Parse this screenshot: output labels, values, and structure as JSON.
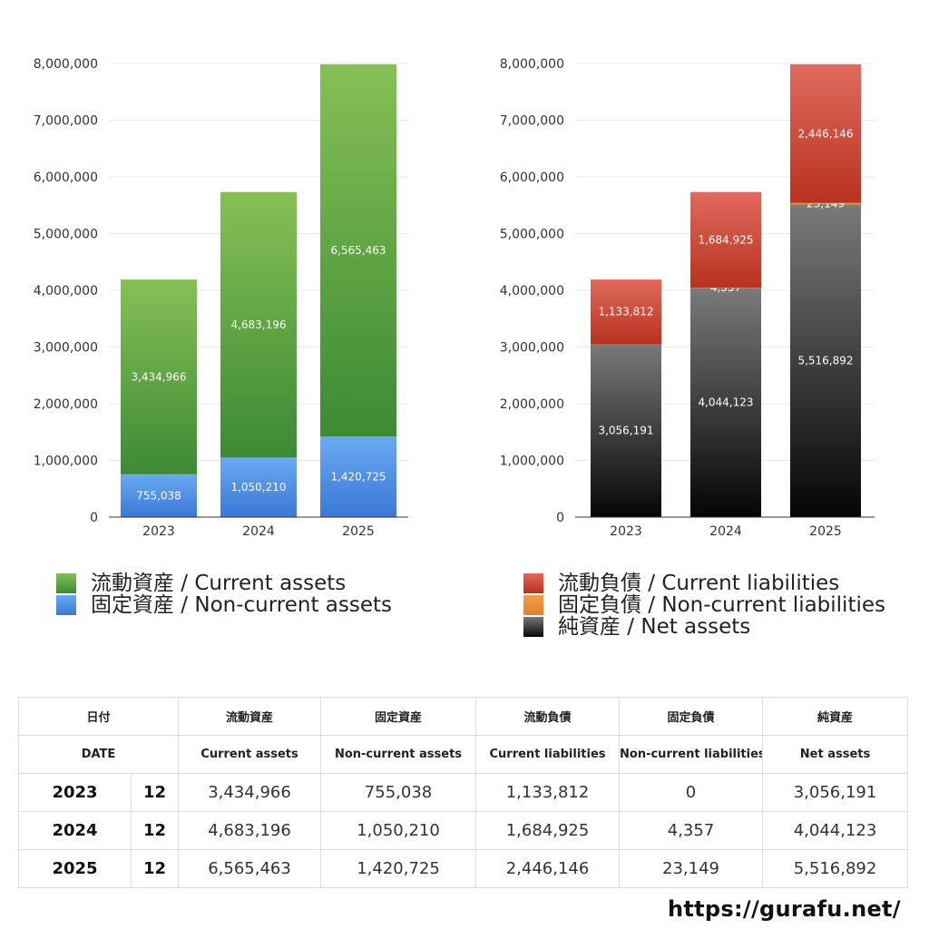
{
  "chart_data": [
    {
      "type": "bar",
      "stacked": true,
      "categories": [
        "2023",
        "2024",
        "2025"
      ],
      "ylim": [
        0,
        8000000
      ],
      "y_ticks": [
        "0",
        "1,000,000",
        "2,000,000",
        "3,000,000",
        "4,000,000",
        "5,000,000",
        "6,000,000",
        "7,000,000",
        "8,000,000"
      ],
      "y_tick_values": [
        0,
        1000000,
        2000000,
        3000000,
        4000000,
        5000000,
        6000000,
        7000000,
        8000000
      ],
      "series": [
        {
          "name": "固定資産 / Non-current assets",
          "values": [
            755038,
            1050210,
            1420725
          ],
          "labels": [
            "755,038",
            "1,050,210",
            "1,420,725"
          ],
          "color_top": "#6aaaf2",
          "color_bottom": "#3a78d6"
        },
        {
          "name": "流動資産 / Current assets",
          "values": [
            3434966,
            4683196,
            6565463
          ],
          "labels": [
            "3,434,966",
            "4,683,196",
            "6,565,463"
          ],
          "color_top": "#86c055",
          "color_bottom": "#3c8a34"
        }
      ],
      "legend_order": [
        1,
        0
      ],
      "legend_position": "bottom"
    },
    {
      "type": "bar",
      "stacked": true,
      "categories": [
        "2023",
        "2024",
        "2025"
      ],
      "ylim": [
        0,
        8000000
      ],
      "y_ticks": [
        "0",
        "1,000,000",
        "2,000,000",
        "3,000,000",
        "4,000,000",
        "5,000,000",
        "6,000,000",
        "7,000,000",
        "8,000,000"
      ],
      "y_tick_values": [
        0,
        1000000,
        2000000,
        3000000,
        4000000,
        5000000,
        6000000,
        7000000,
        8000000
      ],
      "series": [
        {
          "name": "純資産 / Net assets",
          "values": [
            3056191,
            4044123,
            5516892
          ],
          "labels": [
            "3,056,191",
            "4,044,123",
            "5,516,892"
          ],
          "color_top": "#7a7a7a",
          "color_bottom": "#050505"
        },
        {
          "name": "固定負債 / Non-current liabilities",
          "values": [
            0,
            4357,
            23149
          ],
          "labels": [
            "",
            "4,357",
            "23,149"
          ],
          "color_top": "#f0a04a",
          "color_bottom": "#e2802a"
        },
        {
          "name": "流動負債 / Current liabilities",
          "values": [
            1133812,
            1684925,
            2446146
          ],
          "labels": [
            "1,133,812",
            "1,684,925",
            "2,446,146"
          ],
          "color_top": "#e06a5e",
          "color_bottom": "#b8321f"
        }
      ],
      "legend_order": [
        2,
        1,
        0
      ],
      "legend_position": "bottom"
    }
  ],
  "table": {
    "header_ja": [
      "日付",
      "流動資産",
      "固定資産",
      "流動負債",
      "固定負債",
      "純資産"
    ],
    "header_en": [
      "DATE",
      "Current assets",
      "Non-current assets",
      "Current liabilities",
      "Non-current liabilities",
      "Net assets"
    ],
    "rows": [
      {
        "year": "2023",
        "month": "12",
        "values": [
          "3,434,966",
          "755,038",
          "1,133,812",
          "0",
          "3,056,191"
        ]
      },
      {
        "year": "2024",
        "month": "12",
        "values": [
          "4,683,196",
          "1,050,210",
          "1,684,925",
          "4,357",
          "4,044,123"
        ]
      },
      {
        "year": "2025",
        "month": "12",
        "values": [
          "6,565,463",
          "1,420,725",
          "2,446,146",
          "23,149",
          "5,516,892"
        ]
      }
    ]
  },
  "footer": {
    "url": "https://gurafu.net/"
  }
}
